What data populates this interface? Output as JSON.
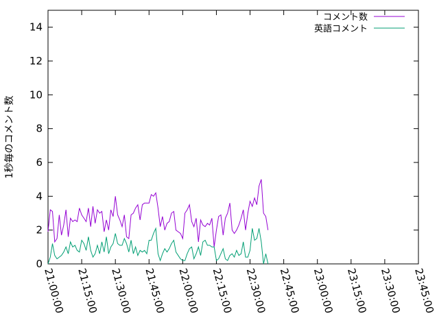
{
  "chart_data": {
    "type": "line",
    "ylabel": "1秒毎のコメント数",
    "xlabel": "",
    "ylim": [
      0,
      15
    ],
    "xlim": [
      "21:00:00",
      "23:45:00"
    ],
    "grid": false,
    "legend": "top-right",
    "y_ticks": [
      "0",
      "2",
      "4",
      "6",
      "8",
      "10",
      "12",
      "14"
    ],
    "x_ticks": [
      "21:00:00",
      "21:15:00",
      "21:30:00",
      "21:45:00",
      "22:00:00",
      "22:15:00",
      "22:30:00",
      "22:45:00",
      "23:00:00",
      "23:15:00",
      "23:30:00",
      "23:45:00"
    ],
    "x_start": "21:00:00",
    "x_step_seconds": 60,
    "series": [
      {
        "name": "コメント数",
        "color": "#9400d3",
        "values": [
          1.9,
          3.2,
          3.1,
          1.3,
          1.5,
          2.9,
          1.7,
          2.3,
          3.2,
          1.6,
          2.7,
          2.5,
          2.6,
          2.5,
          3.3,
          2.9,
          2.7,
          2.5,
          3.3,
          2.2,
          3.4,
          2.4,
          3.2,
          3.0,
          3.1,
          1.9,
          2.6,
          2.0,
          3.2,
          2.8,
          4.0,
          2.9,
          2.6,
          2.2,
          2.9,
          1.6,
          1.5,
          2.9,
          3.0,
          3.3,
          3.5,
          2.6,
          3.5,
          3.6,
          3.6,
          3.6,
          4.1,
          4.0,
          4.2,
          3.3,
          2.2,
          2.8,
          2.0,
          2.4,
          2.5,
          3.0,
          3.1,
          2.0,
          1.9,
          1.8,
          1.5,
          3.0,
          3.2,
          3.5,
          2.5,
          2.2,
          2.7,
          1.3,
          2.6,
          2.3,
          2.2,
          2.4,
          2.3,
          2.7,
          1.0,
          2.0,
          2.8,
          2.9,
          1.7,
          2.7,
          3.0,
          3.6,
          2.0,
          1.8,
          2.0,
          2.3,
          2.7,
          3.2,
          2.0,
          3.0,
          3.7,
          3.4,
          3.9,
          3.5,
          4.6,
          5.0,
          3.0,
          2.8,
          2.0
        ]
      },
      {
        "name": "英語コメント",
        "color": "#009e73",
        "values": [
          0.0,
          0.4,
          1.2,
          0.5,
          0.3,
          0.4,
          0.5,
          0.7,
          1.0,
          0.6,
          1.3,
          1.0,
          1.1,
          0.8,
          0.7,
          1.4,
          1.2,
          0.8,
          1.6,
          0.8,
          0.4,
          0.6,
          1.1,
          0.6,
          1.3,
          0.7,
          1.6,
          0.6,
          1.0,
          1.2,
          1.8,
          1.2,
          1.1,
          1.1,
          1.5,
          1.2,
          0.7,
          1.4,
          0.6,
          1.0,
          0.5,
          0.8,
          0.7,
          0.8,
          0.6,
          1.4,
          1.4,
          1.8,
          2.1,
          0.6,
          0.2,
          0.6,
          0.9,
          0.7,
          0.9,
          1.2,
          1.4,
          0.7,
          0.5,
          0.3,
          0.2,
          0.2,
          0.6,
          0.9,
          1.0,
          0.3,
          0.6,
          1.0,
          0.5,
          1.3,
          1.4,
          1.1,
          1.1,
          1.0,
          1.0,
          0.2,
          0.3,
          0.6,
          0.9,
          0.3,
          0.2,
          0.5,
          0.6,
          0.4,
          0.8,
          0.5,
          0.6,
          1.3,
          0.4,
          0.4,
          0.8,
          2.1,
          1.4,
          1.5,
          2.1,
          1.3,
          0.0,
          0.6,
          0.0
        ]
      }
    ]
  }
}
